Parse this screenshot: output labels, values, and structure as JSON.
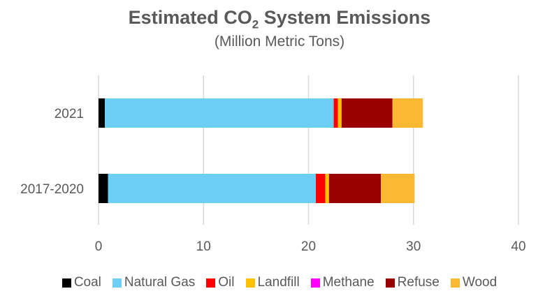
{
  "chart_data": {
    "type": "bar",
    "orientation": "horizontal",
    "stacked": true,
    "title": "Estimated CO",
    "title_subscript": "2",
    "title_suffix": " System Emissions",
    "subtitle": "(Million Metric Tons)",
    "categories": [
      "2021",
      "2017-2020"
    ],
    "xlim": [
      0,
      40
    ],
    "xticks": [
      "0",
      "10",
      "20",
      "30",
      "40"
    ],
    "grid": true,
    "legend_position": "bottom",
    "series": [
      {
        "name": "Coal",
        "color": "#000000",
        "values": [
          0.6,
          0.9
        ]
      },
      {
        "name": "Natural Gas",
        "color": "#6DCFF6",
        "values": [
          21.8,
          19.8
        ]
      },
      {
        "name": "Oil",
        "color": "#FF0000",
        "values": [
          0.4,
          0.9
        ]
      },
      {
        "name": "Landfill",
        "color": "#FFC000",
        "values": [
          0.35,
          0.35
        ]
      },
      {
        "name": "Methane",
        "color": "#FF00FF",
        "values": [
          0,
          0
        ]
      },
      {
        "name": "Refuse",
        "color": "#990000",
        "values": [
          4.85,
          4.95
        ]
      },
      {
        "name": "Wood",
        "color": "#FBB832",
        "values": [
          2.9,
          3.2
        ]
      }
    ]
  }
}
